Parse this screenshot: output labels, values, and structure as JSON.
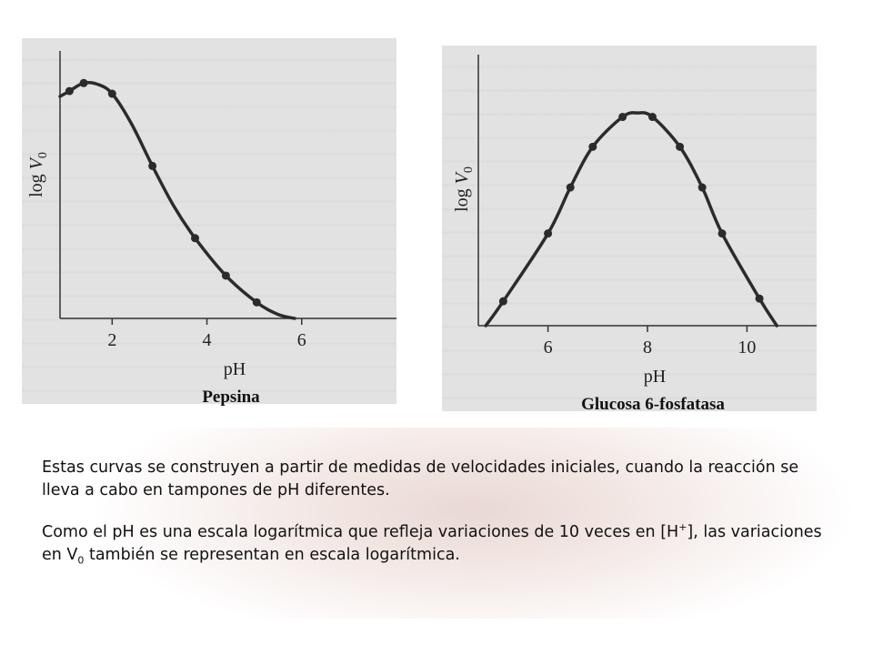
{
  "chart_data": [
    {
      "type": "line",
      "title": "Pepsina",
      "xlabel": "pH",
      "ylabel": "log V",
      "ylabel_subscript": "0",
      "x_ticks": [
        "2",
        "4",
        "6"
      ],
      "xlim": [
        0.9,
        8
      ],
      "ylim": [
        0,
        1
      ],
      "points": {
        "x": [
          1.1,
          1.4,
          2.0,
          2.85,
          3.75,
          4.4,
          5.05
        ],
        "y": [
          0.85,
          0.88,
          0.84,
          0.57,
          0.3,
          0.16,
          0.06
        ]
      },
      "curve": {
        "x": [
          0.9,
          1.1,
          1.4,
          1.7,
          2.0,
          2.4,
          2.85,
          3.3,
          3.75,
          4.4,
          5.05,
          5.5,
          5.85
        ],
        "y": [
          0.83,
          0.85,
          0.88,
          0.875,
          0.84,
          0.73,
          0.57,
          0.42,
          0.3,
          0.16,
          0.06,
          0.015,
          0.0
        ]
      },
      "grid": false
    },
    {
      "type": "line",
      "title": "Glucosa 6-fosfatasa",
      "xlabel": "pH",
      "ylabel": "log V",
      "ylabel_subscript": "0",
      "x_ticks": [
        "6",
        "8",
        "10"
      ],
      "xlim": [
        4.6,
        11.4
      ],
      "ylim": [
        0,
        1
      ],
      "points": {
        "x": [
          5.1,
          6.0,
          6.45,
          6.9,
          7.5,
          8.1,
          8.65,
          9.1,
          9.5,
          10.25
        ],
        "y": [
          0.09,
          0.34,
          0.51,
          0.66,
          0.77,
          0.77,
          0.66,
          0.51,
          0.34,
          0.1
        ]
      },
      "curve": {
        "x": [
          4.75,
          5.1,
          6.0,
          6.45,
          6.9,
          7.5,
          7.8,
          8.1,
          8.65,
          9.1,
          9.5,
          10.25,
          10.6
        ],
        "y": [
          0.0,
          0.09,
          0.34,
          0.51,
          0.66,
          0.77,
          0.785,
          0.77,
          0.66,
          0.51,
          0.34,
          0.1,
          0.0
        ]
      },
      "grid": false
    }
  ],
  "caption": {
    "paragraph1": "Estas curvas se construyen a partir de medidas de velocidades iniciales, cuando la reacción se lleva a cabo en tampones de pH diferentes.",
    "paragraph2_before_h": "Como el pH es una escala logarítmica que refleja variaciones de 10 veces en [H",
    "paragraph2_plus": "+",
    "paragraph2_mid": "], las variaciones en V",
    "paragraph2_sub": "0",
    "paragraph2_after": " también se representan en escala logarítmica."
  },
  "colors": {
    "curve": "#2b2b2b",
    "panel": "#e2e2e2"
  }
}
